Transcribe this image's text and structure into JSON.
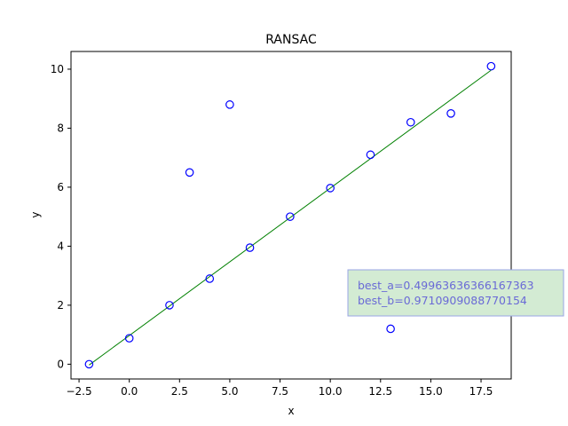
{
  "chart_data": {
    "type": "scatter",
    "title": "RANSAC",
    "xlabel": "x",
    "ylabel": "y",
    "xlim": [
      -2.9,
      19.0
    ],
    "ylim": [
      -0.5,
      10.6
    ],
    "xticks": [
      -2.5,
      0.0,
      2.5,
      5.0,
      7.5,
      10.0,
      12.5,
      15.0,
      17.5
    ],
    "xtick_labels": [
      "−2.5",
      "0.0",
      "2.5",
      "5.0",
      "7.5",
      "10.0",
      "12.5",
      "15.0",
      "17.5"
    ],
    "yticks": [
      0,
      2,
      4,
      6,
      8,
      10
    ],
    "ytick_labels": [
      "0",
      "2",
      "4",
      "6",
      "8",
      "10"
    ],
    "grid": false,
    "points": {
      "x": [
        -2,
        0,
        2,
        3,
        4,
        5,
        6,
        8,
        10,
        12,
        13,
        14,
        16,
        18
      ],
      "y": [
        0.0,
        0.88,
        2.0,
        6.5,
        2.9,
        8.8,
        3.95,
        5.0,
        5.97,
        7.1,
        1.2,
        8.2,
        8.5,
        10.1
      ],
      "marker": "open-circle",
      "color": "#0000ff"
    },
    "fit_line": {
      "slope": 0.49963636366167363,
      "intercept": 0.9710909088770154,
      "x_range": [
        -2,
        18
      ],
      "color": "#008000"
    },
    "annotation": {
      "lines": [
        "best_a=0.49963636366167363",
        "best_b=0.9710909088770154"
      ],
      "text_color": "#6a6ad6",
      "box_fill": "#d3ebd3",
      "box_edge": "#9aa6e6"
    }
  }
}
